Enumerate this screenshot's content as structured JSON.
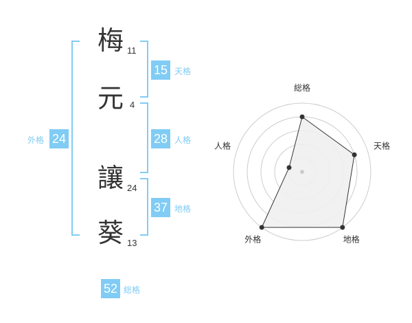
{
  "name": {
    "characters": [
      {
        "char": "梅",
        "strokes": "11"
      },
      {
        "char": "元",
        "strokes": "4"
      },
      {
        "char": "讓",
        "strokes": "24"
      },
      {
        "char": "葵",
        "strokes": "13"
      }
    ]
  },
  "fortunes": {
    "tenkaku": {
      "value": "15",
      "label": "天格"
    },
    "jinkaku": {
      "value": "28",
      "label": "人格"
    },
    "chikaku": {
      "value": "37",
      "label": "地格"
    },
    "gaikaku": {
      "value": "24",
      "label": "外格"
    },
    "soukaku": {
      "value": "52",
      "label": "総格"
    }
  },
  "colors": {
    "accent": "#80ccf5",
    "text": "#333333",
    "radar_fill": "#f0f0f0"
  },
  "chart_data": {
    "type": "radar",
    "axes": [
      "総格",
      "天格",
      "地格",
      "外格",
      "人格"
    ],
    "values": [
      4,
      4,
      5,
      5,
      1
    ],
    "range": [
      0,
      5
    ],
    "rings": 5
  }
}
